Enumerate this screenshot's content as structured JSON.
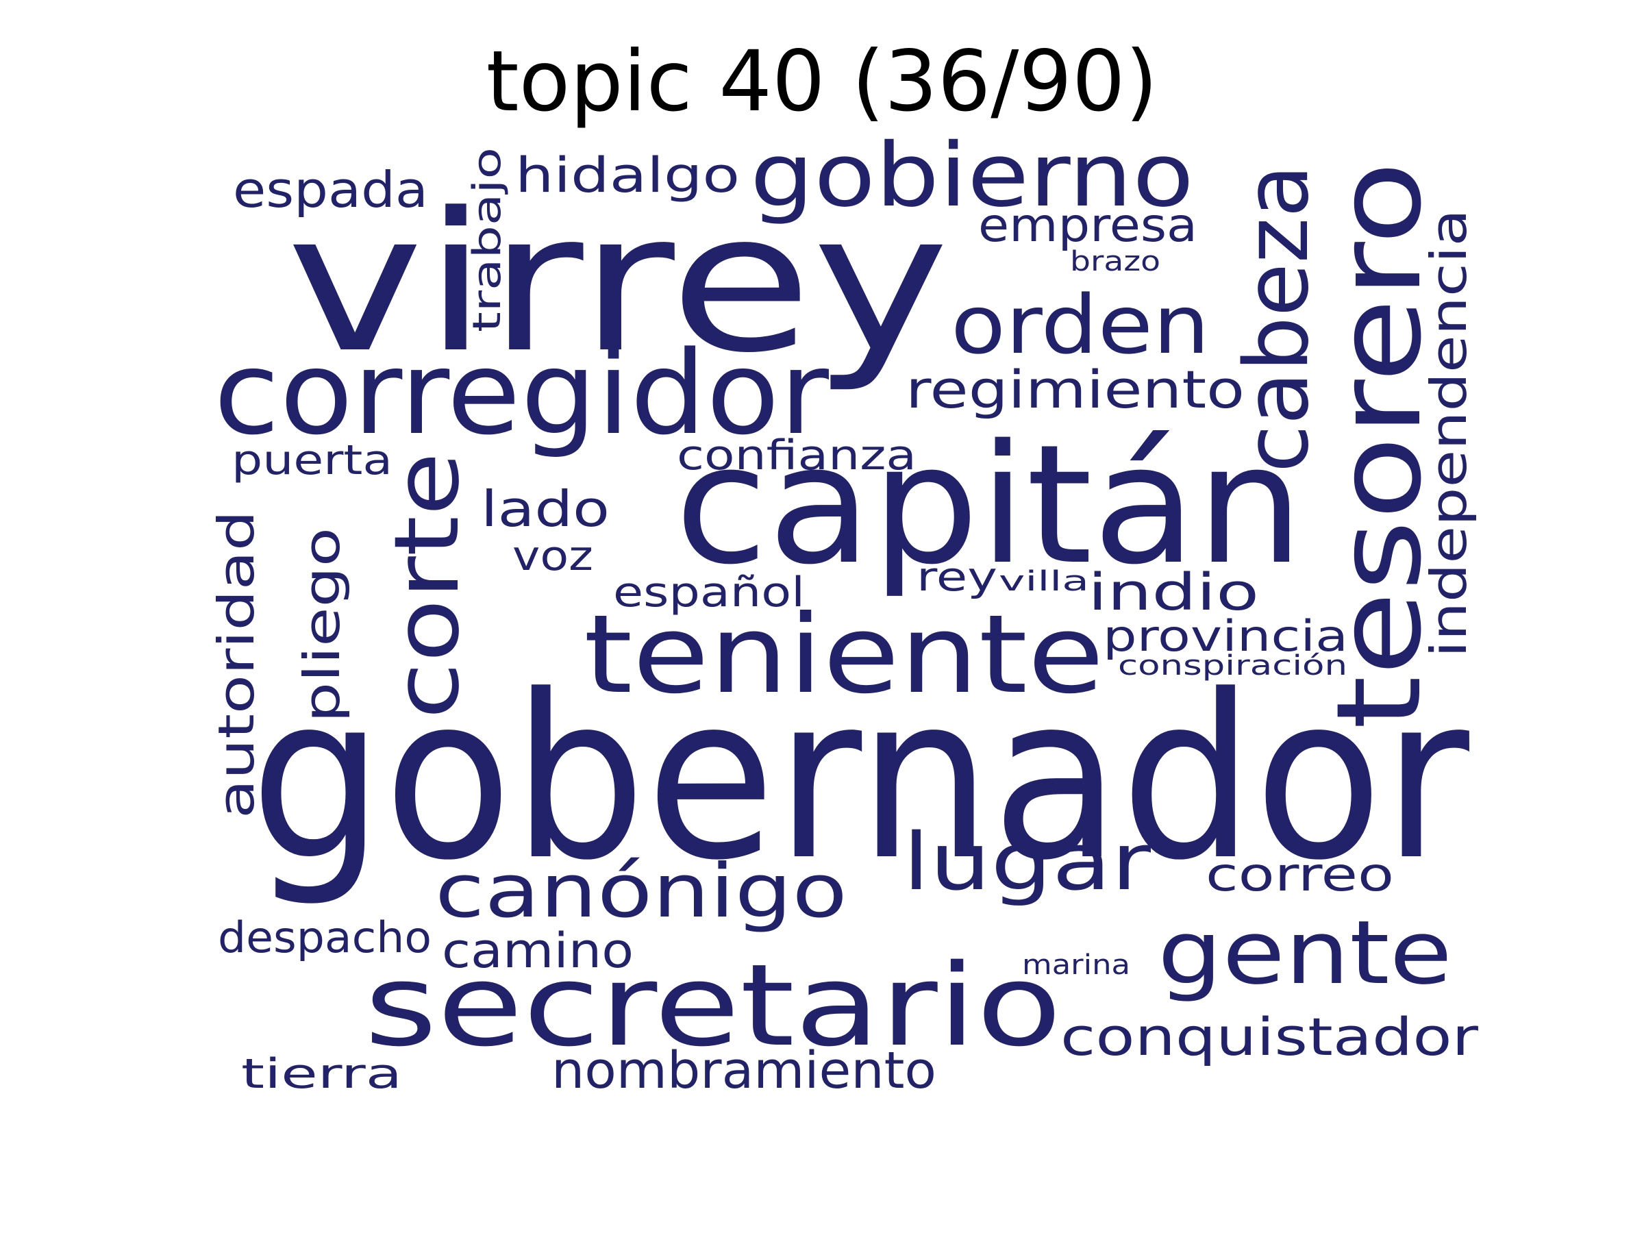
{
  "title": "topic 40 (36/90)",
  "word_color": "#22226a",
  "words": [
    {
      "text": "gobernador"
    },
    {
      "text": "virrey"
    },
    {
      "text": "capitán"
    },
    {
      "text": "corregidor"
    },
    {
      "text": "teniente"
    },
    {
      "text": "secretario"
    },
    {
      "text": "gobierno"
    },
    {
      "text": "tesorero"
    },
    {
      "text": "orden"
    },
    {
      "text": "corte"
    },
    {
      "text": "cabeza"
    },
    {
      "text": "gente"
    },
    {
      "text": "canónigo"
    },
    {
      "text": "lugar"
    },
    {
      "text": "conquistador"
    },
    {
      "text": "independencia"
    },
    {
      "text": "regimiento"
    },
    {
      "text": "nombramiento"
    },
    {
      "text": "empresa"
    },
    {
      "text": "hidalgo"
    },
    {
      "text": "espada"
    },
    {
      "text": "autoridad"
    },
    {
      "text": "pliego"
    },
    {
      "text": "trabajo"
    },
    {
      "text": "lado"
    },
    {
      "text": "indio"
    },
    {
      "text": "provincia"
    },
    {
      "text": "correo"
    },
    {
      "text": "camino"
    },
    {
      "text": "despacho"
    },
    {
      "text": "confianza"
    },
    {
      "text": "puerta"
    },
    {
      "text": "español"
    },
    {
      "text": "voz"
    },
    {
      "text": "tierra"
    },
    {
      "text": "rey"
    },
    {
      "text": "villa"
    },
    {
      "text": "conspiración"
    },
    {
      "text": "brazo"
    },
    {
      "text": "marina"
    }
  ]
}
